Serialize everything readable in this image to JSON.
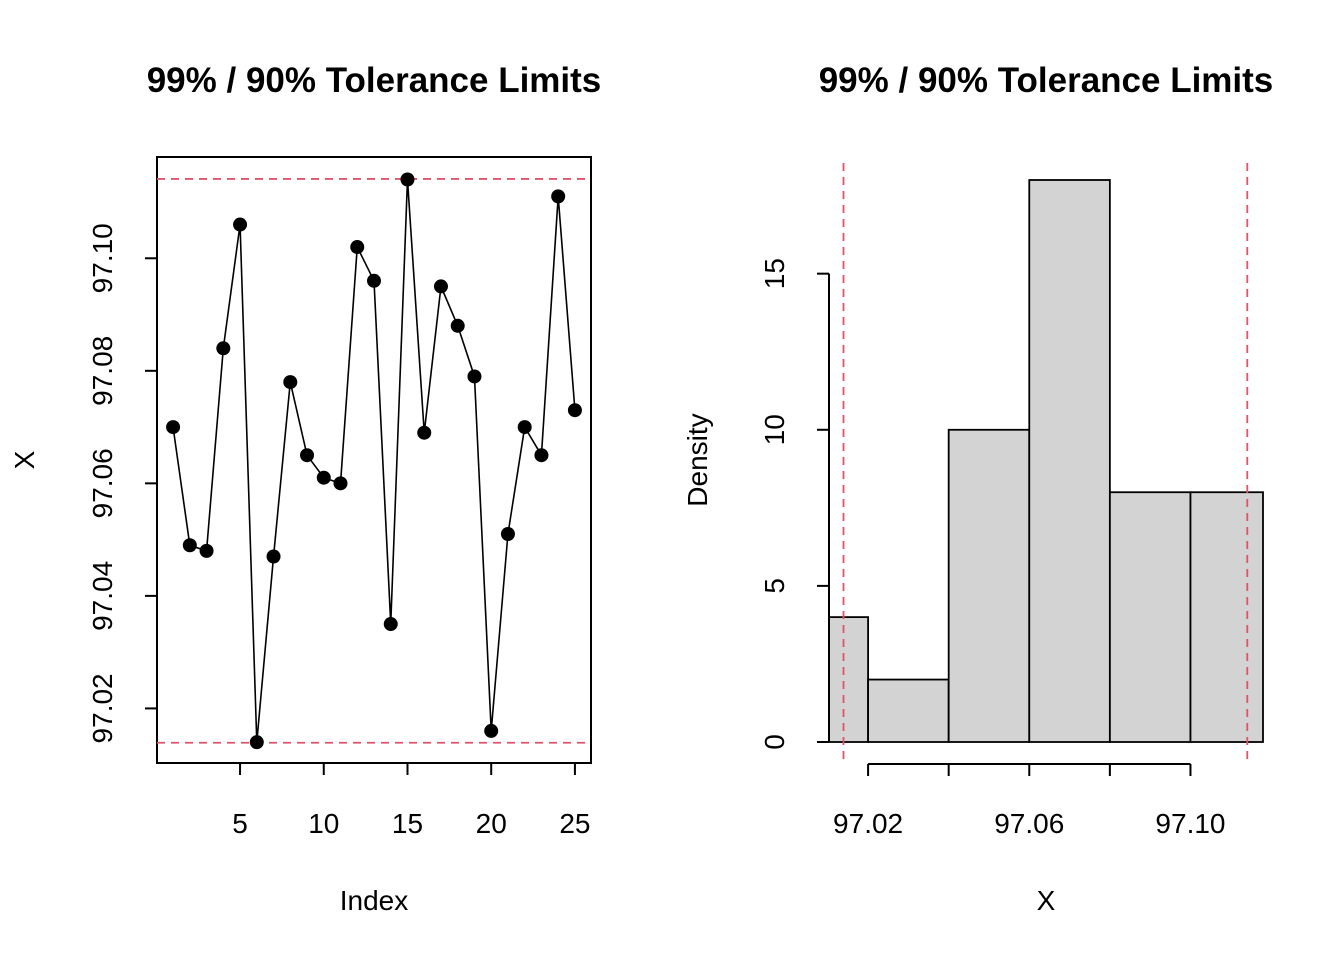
{
  "chart_data": [
    {
      "type": "line",
      "title": "99% / 90% Tolerance Limits",
      "xlabel": "Index",
      "ylabel": "X",
      "x": [
        1,
        2,
        3,
        4,
        5,
        6,
        7,
        8,
        9,
        10,
        11,
        12,
        13,
        14,
        15,
        16,
        17,
        18,
        19,
        20,
        21,
        22,
        23,
        24,
        25
      ],
      "values": [
        97.07,
        97.049,
        97.048,
        97.084,
        97.106,
        97.014,
        97.047,
        97.078,
        97.065,
        97.061,
        97.06,
        97.102,
        97.096,
        97.035,
        97.114,
        97.069,
        97.095,
        97.088,
        97.079,
        97.016,
        97.051,
        97.07,
        97.065,
        97.111,
        97.073
      ],
      "xlim": [
        0.04,
        25.96
      ],
      "ylim": [
        97.1101,
        97.1179
      ],
      "ylim_actual": [
        97.0103,
        97.118
      ],
      "xticks": [
        5,
        10,
        15,
        20,
        25
      ],
      "yticks": [
        97.02,
        97.04,
        97.06,
        97.08,
        97.1
      ],
      "ytick_labels": [
        "97.02",
        "97.04",
        "97.06",
        "97.08",
        "97.10"
      ],
      "tolerance_limits": [
        97.0139,
        97.1141
      ],
      "limit_color": "#DF536B",
      "point_color": "#000000",
      "markers": "filled-circle"
    },
    {
      "type": "bar",
      "title": "99% / 90% Tolerance Limits",
      "xlabel": "X",
      "ylabel": "Density",
      "bins": [
        {
          "from": 97.01,
          "to": 97.02,
          "density": 4
        },
        {
          "from": 97.02,
          "to": 97.04,
          "density": 2
        },
        {
          "from": 97.04,
          "to": 97.06,
          "density": 10
        },
        {
          "from": 97.06,
          "to": 97.08,
          "density": 18
        },
        {
          "from": 97.08,
          "to": 97.1,
          "density": 8
        },
        {
          "from": 97.1,
          "to": 97.12,
          "density": 8
        }
      ],
      "xlim": [
        97.0103,
        97.118
      ],
      "ylim": [
        0,
        18.72
      ],
      "xticks": [
        97.02,
        97.04,
        97.06,
        97.08,
        97.1
      ],
      "xtick_labels": [
        "97.02",
        "",
        "97.06",
        "",
        "97.10"
      ],
      "yticks": [
        0,
        5,
        10,
        15
      ],
      "ytick_labels": [
        "0",
        "5",
        "10",
        "15"
      ],
      "tolerance_limits": [
        97.0139,
        97.1141
      ],
      "limit_color": "#DF536B",
      "bar_fill": "#D3D3D3"
    }
  ]
}
